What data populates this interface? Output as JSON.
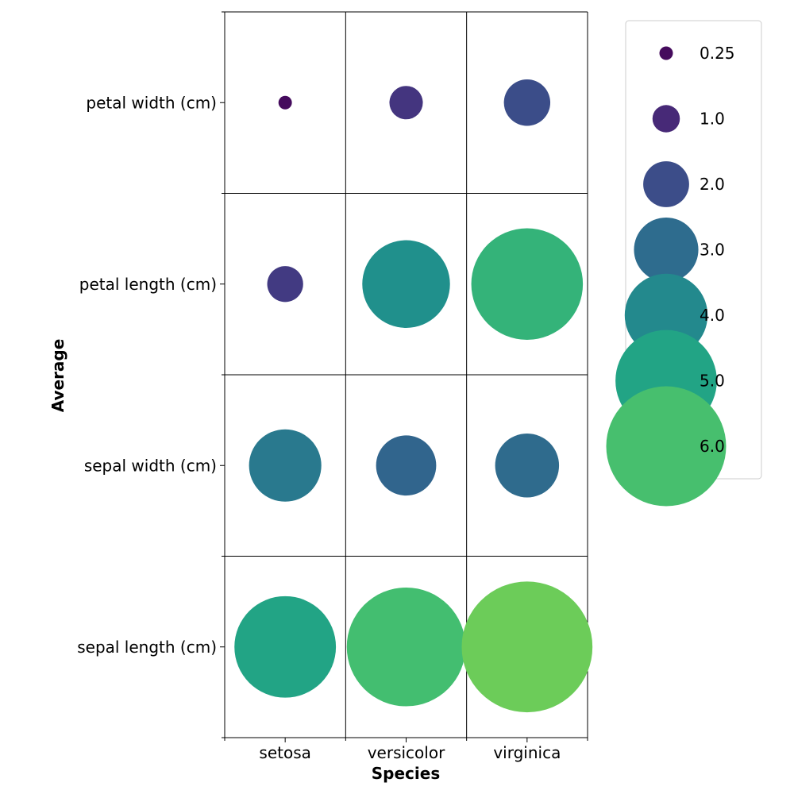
{
  "chart_data": {
    "type": "scatter",
    "subtype": "bubble-grid",
    "title": "",
    "xlabel": "Species",
    "ylabel": "Average",
    "x_categories": [
      "setosa",
      "versicolor",
      "virginica"
    ],
    "y_categories": [
      "sepal length (cm)",
      "sepal width (cm)",
      "petal length (cm)",
      "petal width (cm)"
    ],
    "points": [
      {
        "x": "setosa",
        "y": "petal width (cm)",
        "value": 0.246
      },
      {
        "x": "versicolor",
        "y": "petal width (cm)",
        "value": 1.326
      },
      {
        "x": "virginica",
        "y": "petal width (cm)",
        "value": 2.026
      },
      {
        "x": "setosa",
        "y": "petal length (cm)",
        "value": 1.462
      },
      {
        "x": "versicolor",
        "y": "petal length (cm)",
        "value": 4.26
      },
      {
        "x": "virginica",
        "y": "petal length (cm)",
        "value": 5.552
      },
      {
        "x": "setosa",
        "y": "sepal width (cm)",
        "value": 3.428
      },
      {
        "x": "versicolor",
        "y": "sepal width (cm)",
        "value": 2.77
      },
      {
        "x": "virginica",
        "y": "sepal width (cm)",
        "value": 2.974
      },
      {
        "x": "setosa",
        "y": "sepal length (cm)",
        "value": 5.006
      },
      {
        "x": "versicolor",
        "y": "sepal length (cm)",
        "value": 5.936
      },
      {
        "x": "virginica",
        "y": "sepal length (cm)",
        "value": 6.588
      }
    ],
    "size_and_color_encode": "value",
    "colormap": "viridis",
    "color_range": [
      0,
      8.5
    ],
    "grid": true,
    "legend": {
      "placement": "right",
      "entries": [
        {
          "label": "0.25",
          "value": 0.25
        },
        {
          "label": "1.0",
          "value": 1.0
        },
        {
          "label": "2.0",
          "value": 2.0
        },
        {
          "label": "3.0",
          "value": 3.0
        },
        {
          "label": "4.0",
          "value": 4.0
        },
        {
          "label": "5.0",
          "value": 5.0
        },
        {
          "label": "6.0",
          "value": 6.0
        }
      ]
    }
  }
}
